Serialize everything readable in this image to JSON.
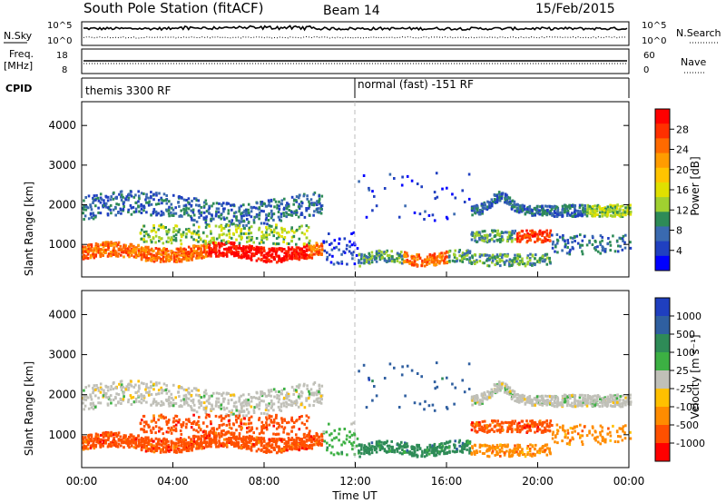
{
  "header": {
    "station": "South Pole Station (fitACF)",
    "beam": "Beam 14",
    "date": "15/Feb/2015"
  },
  "noise_panel": {
    "left_label": "N.Sky",
    "left_ticks": [
      "10^5",
      "10^0"
    ],
    "right_ticks": [
      "10^5",
      "10^0"
    ],
    "right_label": "N.Search"
  },
  "freq_panel": {
    "left_label_1": "Freq.",
    "left_label_2": "[MHz]",
    "left_ticks": [
      "18",
      "8"
    ],
    "right_ticks": [
      "60",
      "0"
    ],
    "right_label": "Nave"
  },
  "cpid_panel": {
    "label": "CPID",
    "segments": [
      "themis 3300 RF",
      "normal (fast) -151 RF"
    ]
  },
  "chart_data": [
    {
      "type": "heatmap",
      "name": "power",
      "ylabel": "Slant Range [km]",
      "y_ticks": [
        1000,
        2000,
        3000,
        4000
      ],
      "ylim": [
        180,
        4600
      ],
      "xlim": [
        0,
        24
      ],
      "colorbar_label": "Power [dB]",
      "colorbar_ticks": [
        "28",
        "24",
        "20",
        "16",
        "12",
        "8",
        "4"
      ],
      "colorbar_colors": [
        "#ff0000",
        "#ff3000",
        "#ff6a00",
        "#ff9c00",
        "#ffc400",
        "#e0e000",
        "#a0d030",
        "#2e8b57",
        "#3a6ab0",
        "#2040c0",
        "#0000ff"
      ]
    },
    {
      "type": "heatmap",
      "name": "velocity",
      "ylabel": "Slant Range [km]",
      "y_ticks": [
        1000,
        2000,
        3000,
        4000
      ],
      "ylim": [
        180,
        4600
      ],
      "xlim": [
        0,
        24
      ],
      "colorbar_label": "Velocity [m s⁻¹]",
      "colorbar_ticks": [
        "1000",
        "500",
        "100",
        "25",
        "-25",
        "-100",
        "-500",
        "-1000"
      ],
      "colorbar_colors": [
        "#1f3fbf",
        "#2f5fa0",
        "#2e8b57",
        "#3cb043",
        "#c0c0b8",
        "#ffc000",
        "#ff8c00",
        "#ff5000",
        "#ff0000"
      ]
    }
  ],
  "x_axis": {
    "ticks": [
      "00:00",
      "04:00",
      "08:00",
      "12:00",
      "16:00",
      "20:00",
      "00:00"
    ],
    "tick_hours": [
      0,
      4,
      8,
      12,
      16,
      20,
      24
    ],
    "label": "Time UT"
  }
}
